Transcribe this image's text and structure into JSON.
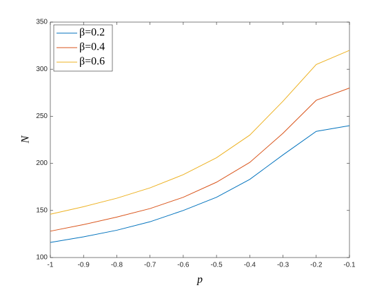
{
  "chart_data": {
    "type": "line",
    "xlabel": "p",
    "ylabel": "N",
    "x": [
      -1,
      -0.9,
      -0.8,
      -0.7,
      -0.6,
      -0.5,
      -0.4,
      -0.3,
      -0.2,
      -0.1
    ],
    "series": [
      {
        "name": "β=0.2",
        "color": "#0072bd",
        "values": [
          116,
          122,
          129,
          138,
          150,
          164,
          183,
          209,
          234,
          240
        ]
      },
      {
        "name": "β=0.4",
        "color": "#d95319",
        "values": [
          128,
          135,
          143,
          152,
          164,
          180,
          201,
          232,
          267,
          280
        ]
      },
      {
        "name": "β=0.6",
        "color": "#edb120",
        "values": [
          146,
          154,
          163,
          174,
          188,
          206,
          230,
          266,
          305,
          320
        ]
      }
    ],
    "xlim": [
      -1,
      -0.1
    ],
    "xticks": [
      -1,
      -0.9,
      -0.8,
      -0.7,
      -0.6,
      -0.5,
      -0.4,
      -0.3,
      -0.2,
      -0.1
    ],
    "ylim": [
      100,
      350
    ],
    "yticks": [
      100,
      150,
      200,
      250,
      300,
      350
    ],
    "grid": false,
    "legend": "upper left"
  }
}
